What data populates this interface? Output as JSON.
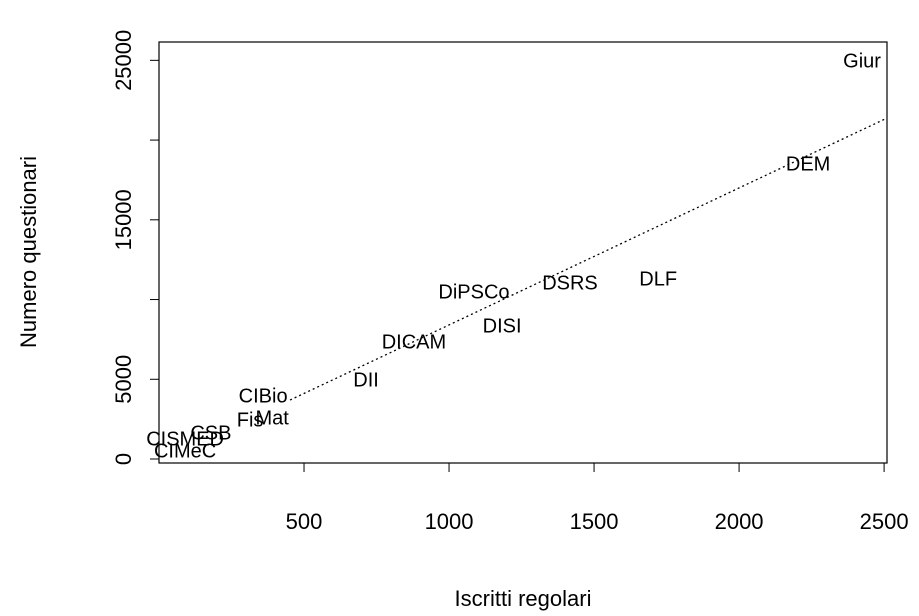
{
  "chart_data": {
    "type": "scatter",
    "xlabel": "Iscritti regolari",
    "ylabel": "Numero questionari",
    "labels": [
      "Giur",
      "DEM",
      "DLF",
      "DSRS",
      "DiPSCo",
      "DISI",
      "DICAM",
      "DII",
      "CIBio",
      "Fis",
      "Mat",
      "CSB",
      "CISMED",
      "CIMeC"
    ],
    "x": [
      2424,
      2238,
      1721,
      1417,
      1086,
      1183,
      879,
      714,
      359,
      314,
      390,
      179,
      90,
      90
    ],
    "y": [
      24890,
      18430,
      11220,
      10970,
      10410,
      8280,
      7270,
      4890,
      3890,
      2380,
      2510,
      1570,
      1190,
      440
    ],
    "fit_line": {
      "x": [
        452,
        2510
      ],
      "y": [
        3700,
        21380
      ]
    },
    "xlim": [
      0,
      2510
    ],
    "ylim": [
      -250,
      26150
    ],
    "xticks": [
      500,
      1000,
      1500,
      2000,
      2500
    ],
    "yticks": [
      0,
      5000,
      15000,
      25000
    ],
    "yminor_ticks": [
      10000,
      20000
    ]
  }
}
